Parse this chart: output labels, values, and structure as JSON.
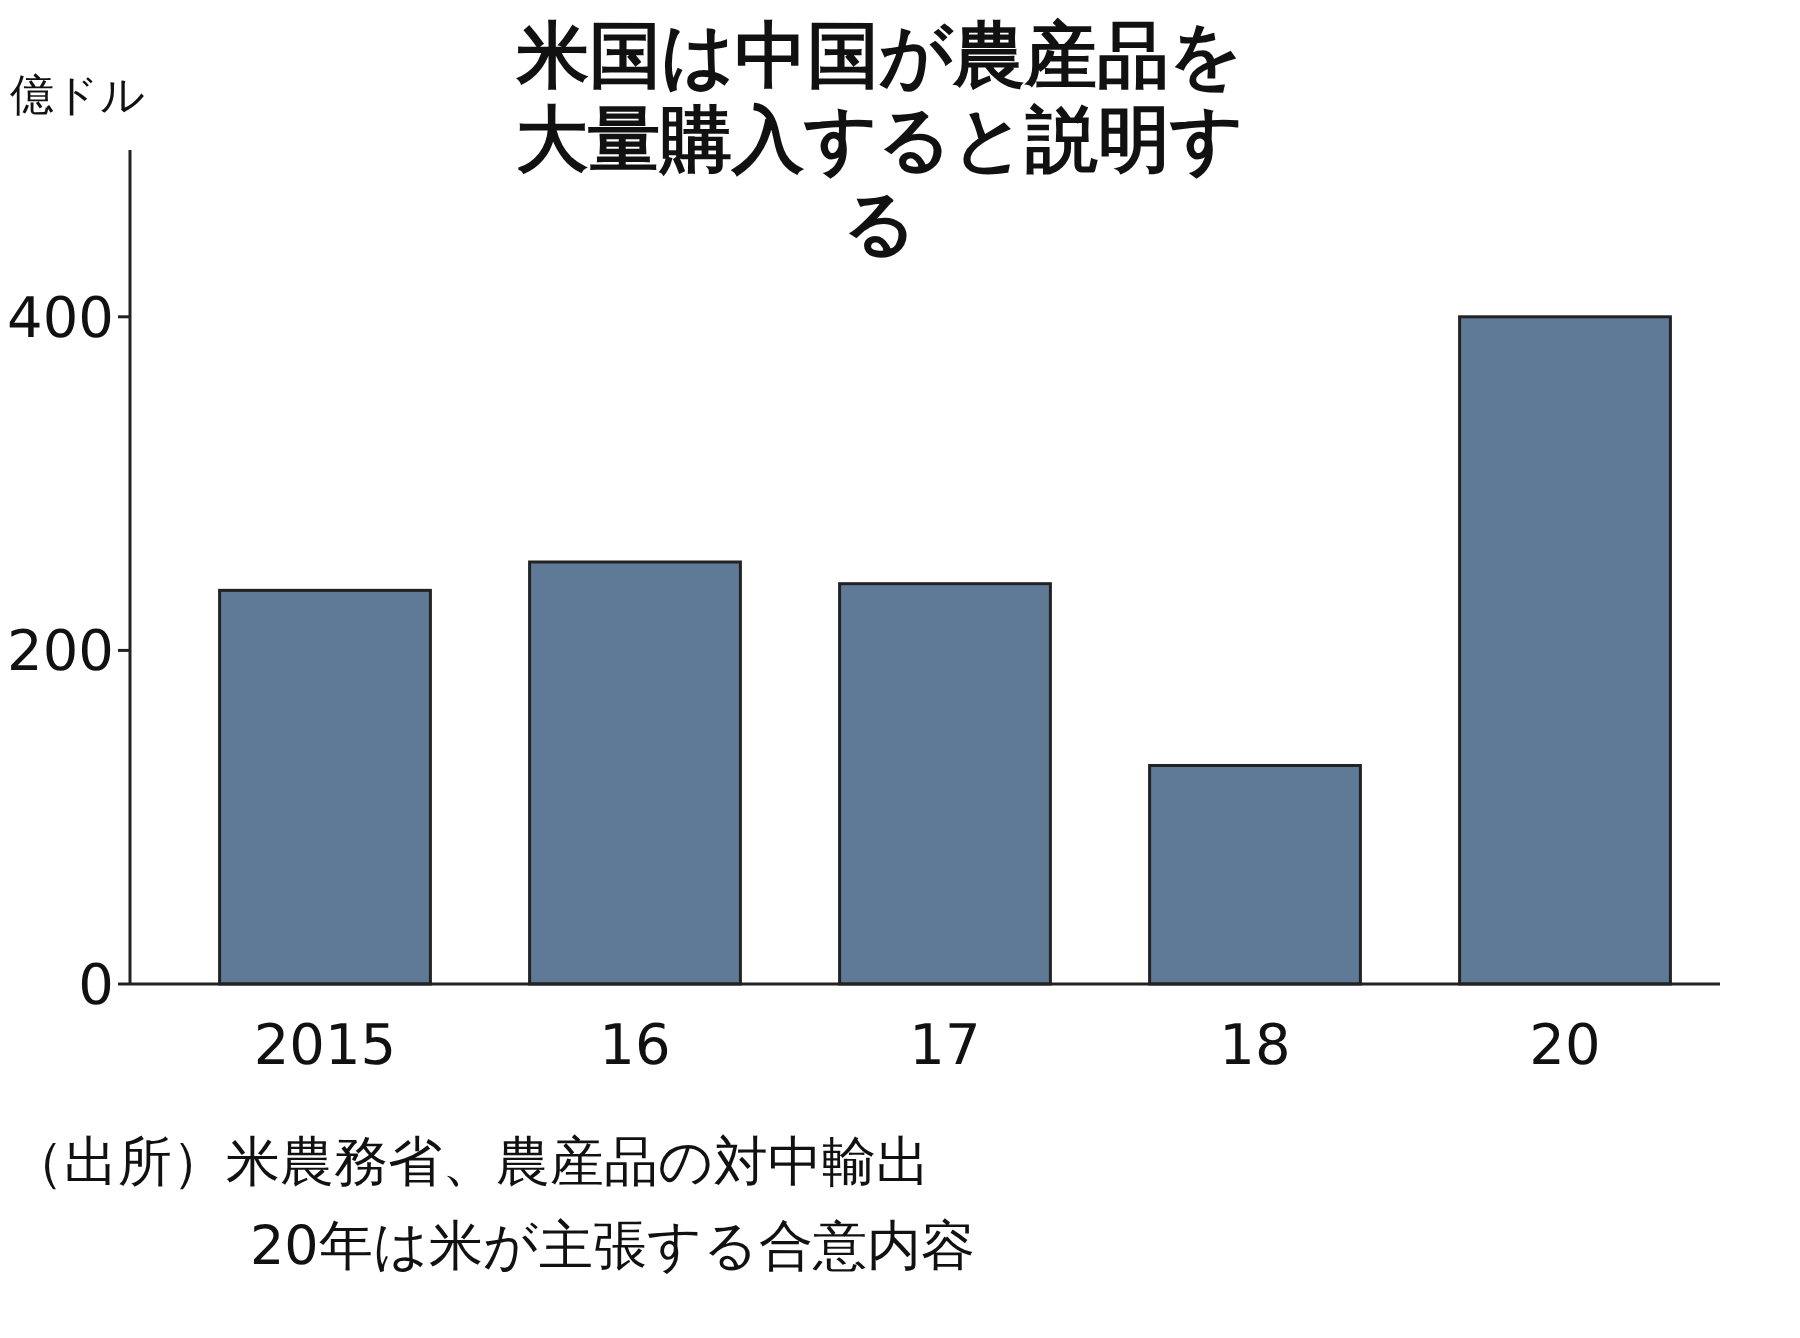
{
  "chart_data": {
    "type": "bar",
    "title": "米国は中国が農産品を大量購入すると説明する",
    "ylabel": "億ドル",
    "categories": [
      "2015",
      "16",
      "17",
      "18",
      "20"
    ],
    "values": [
      236,
      253,
      240,
      131,
      400
    ],
    "color": "#5f7a96",
    "ylim": [
      0,
      500
    ],
    "yticks": [
      0,
      200,
      400
    ],
    "grid": false,
    "annotations": [
      "（出所）米農務省、農産品の対中輸出",
      "20年は米が主張する合意内容"
    ]
  }
}
